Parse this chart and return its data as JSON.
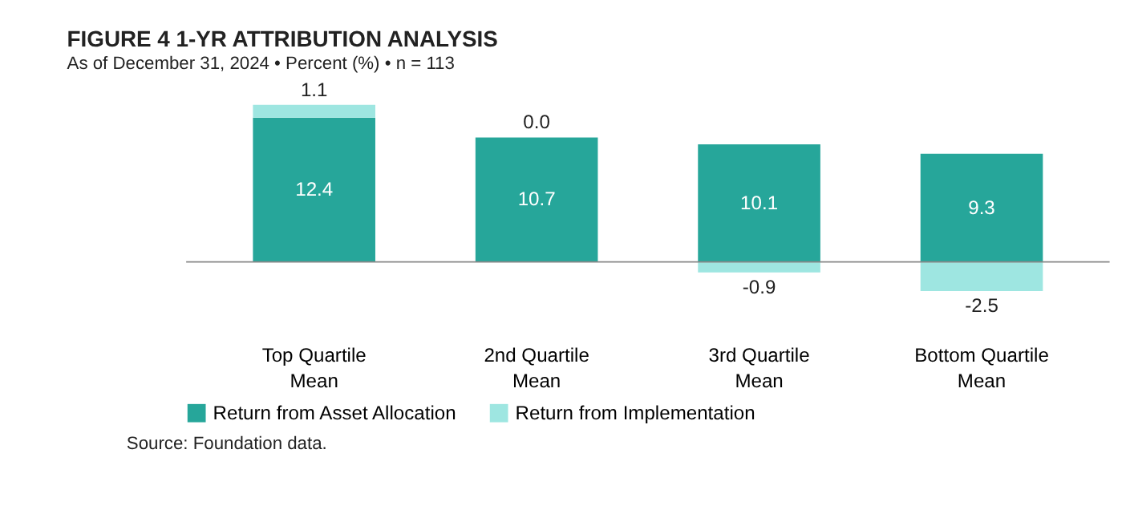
{
  "chart_data": {
    "type": "bar",
    "stacked": true,
    "title": "FIGURE 4   1-YR ATTRIBUTION ANALYSIS",
    "subtitle": "As of December 31, 2024 • Percent (%) • n = 113",
    "categories": [
      "Top Quartile Mean",
      "2nd Quartile Mean",
      "3rd Quartile Mean",
      "Bottom Quartile Mean"
    ],
    "series": [
      {
        "name": "Return from Asset Allocation",
        "color": "#26a69a",
        "values": [
          12.4,
          10.7,
          10.1,
          9.3
        ],
        "value_labels": [
          "12.4",
          "10.7",
          "10.1",
          "9.3"
        ]
      },
      {
        "name": "Return from Implementation",
        "color": "#9ee6e1",
        "values": [
          1.1,
          0.0,
          -0.9,
          -2.5
        ],
        "value_labels": [
          "1.1",
          "0.0",
          "-0.9",
          "-2.5"
        ]
      }
    ],
    "legend": "bottom",
    "grid": false,
    "annotations": [
      "Source: Foundation data."
    ]
  }
}
